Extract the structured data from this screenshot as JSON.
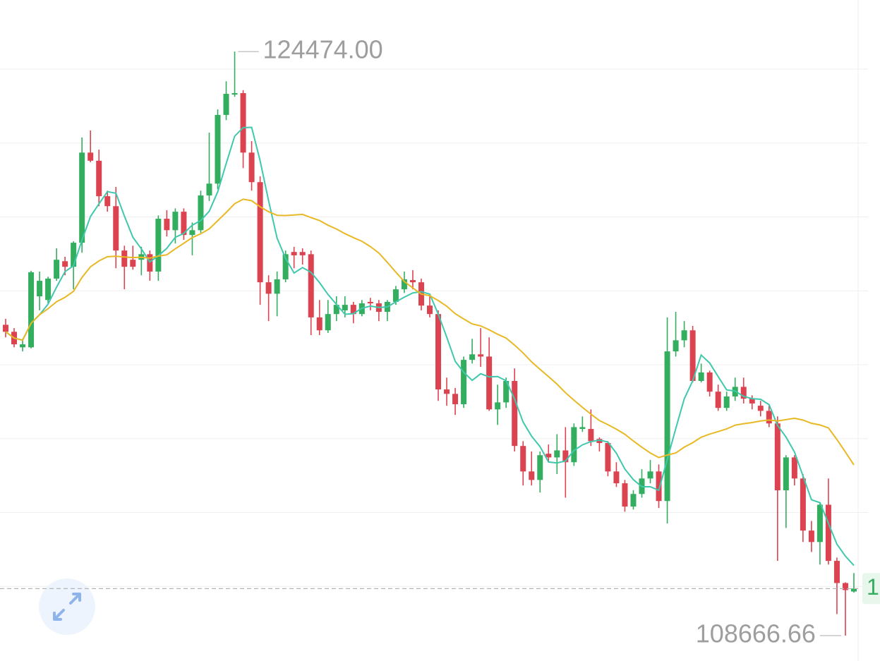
{
  "chart_data": {
    "type": "candlestick",
    "open": [
      117080,
      116890,
      116470,
      116470,
      117850,
      117750,
      118330,
      118800,
      118650,
      119300,
      121740,
      121520,
      120560,
      120290,
      119090,
      118840,
      118840,
      118990,
      118520,
      119950,
      119640,
      120140,
      119510,
      119640,
      120580,
      120900,
      122760,
      123310,
      123350,
      121740,
      120940,
      118230,
      117920,
      118310,
      119050,
      119050,
      118990,
      117280,
      116930,
      117370,
      117470,
      117620,
      117370,
      117700,
      117660,
      117430,
      117700,
      118040,
      118290,
      118230,
      117600,
      117370,
      115330,
      115210,
      114930,
      116130,
      116280,
      116220,
      114790,
      114980,
      115560,
      113800,
      113110,
      112880,
      113590,
      113490,
      113680,
      113360,
      114260,
      114260,
      113990,
      113880,
      113110,
      112790,
      112160,
      112500,
      112920,
      113110,
      112310,
      116360,
      116660,
      116930,
      115560,
      115790,
      115270,
      114830,
      115140,
      115400,
      115080,
      114890,
      114750,
      114410,
      112600,
      113490,
      112920,
      111510,
      111200,
      112210,
      110690,
      110090,
      109860
    ],
    "high": [
      117240,
      116990,
      116700,
      118540,
      118520,
      118380,
      119150,
      118920,
      119340,
      122150,
      122340,
      121820,
      120710,
      120810,
      119220,
      119220,
      119190,
      119090,
      120040,
      120180,
      120230,
      120230,
      119850,
      120710,
      122280,
      122910,
      123670,
      124474,
      123430,
      122050,
      121100,
      118420,
      118520,
      119090,
      119190,
      119150,
      119090,
      117750,
      117750,
      117850,
      117850,
      117700,
      117750,
      117810,
      117750,
      117750,
      118130,
      118520,
      118560,
      118330,
      117850,
      117470,
      115650,
      115370,
      116220,
      116700,
      116990,
      116740,
      115460,
      115650,
      115900,
      113930,
      113650,
      113650,
      113840,
      114120,
      114310,
      114410,
      114600,
      114790,
      114030,
      113930,
      113360,
      112880,
      112600,
      113170,
      113420,
      113300,
      117280,
      117430,
      117180,
      117050,
      116030,
      115840,
      115460,
      115270,
      115650,
      115650,
      115170,
      115020,
      114890,
      114600,
      113550,
      113550,
      113040,
      111770,
      112270,
      112920,
      110780,
      110110,
      110360
    ],
    "low": [
      116740,
      116470,
      116360,
      116440,
      117470,
      117660,
      118270,
      118420,
      118040,
      119030,
      121480,
      120290,
      120140,
      118610,
      118040,
      118570,
      118420,
      118270,
      118270,
      119470,
      119280,
      119380,
      118960,
      119570,
      120430,
      120750,
      122620,
      123250,
      121320,
      120710,
      117620,
      117180,
      117310,
      118230,
      118610,
      118710,
      116800,
      116800,
      116860,
      117180,
      117280,
      117120,
      117310,
      117470,
      117180,
      117180,
      117620,
      117940,
      118040,
      117470,
      117280,
      115020,
      114890,
      114640,
      114830,
      116030,
      115940,
      114750,
      114370,
      114830,
      113650,
      112730,
      112730,
      112540,
      113360,
      113040,
      112400,
      113260,
      114180,
      113800,
      113650,
      112980,
      112690,
      112020,
      112080,
      112400,
      112790,
      112120,
      111700,
      116220,
      116470,
      115520,
      115520,
      115140,
      114750,
      114750,
      115020,
      114950,
      114790,
      114600,
      114310,
      110690,
      111580,
      112730,
      111200,
      110930,
      110590,
      110590,
      109250,
      108666.66,
      109830
    ],
    "close": [
      116890,
      116550,
      116550,
      118500,
      118270,
      118330,
      118840,
      118650,
      119300,
      121740,
      121520,
      120560,
      120290,
      119090,
      118650,
      118650,
      118990,
      118520,
      119950,
      119640,
      120140,
      119510,
      119640,
      120580,
      120900,
      122760,
      123330,
      123350,
      121740,
      120940,
      118230,
      117920,
      118310,
      118990,
      118960,
      118960,
      117280,
      116930,
      117370,
      117620,
      117620,
      117370,
      117660,
      117660,
      117430,
      117700,
      118040,
      118310,
      118230,
      117600,
      117370,
      115330,
      115210,
      114930,
      116130,
      116280,
      116220,
      114790,
      114980,
      115560,
      113800,
      113110,
      112880,
      113550,
      113490,
      113680,
      113360,
      114310,
      114310,
      113930,
      113880,
      113110,
      112790,
      112160,
      112500,
      112920,
      113110,
      112310,
      116360,
      116660,
      116930,
      115560,
      115790,
      115270,
      114830,
      115140,
      115400,
      115080,
      114950,
      114750,
      114410,
      112600,
      113490,
      112920,
      111510,
      111200,
      112210,
      110690,
      110090,
      109900,
      109940
    ],
    "up_color": "#33ad5e",
    "down_color": "#dc4350",
    "ma": [
      {
        "period": 5,
        "color": "#3fc8ad"
      },
      {
        "period": 20,
        "color": "#e8b825"
      }
    ],
    "ylim": [
      107980,
      125870
    ],
    "yticks": [
      110000,
      112000,
      114000,
      116000,
      118000,
      120000,
      122000,
      124000
    ],
    "grid": true,
    "max_label": "124474.00",
    "min_label": "108666.66",
    "price_tag": "1"
  }
}
